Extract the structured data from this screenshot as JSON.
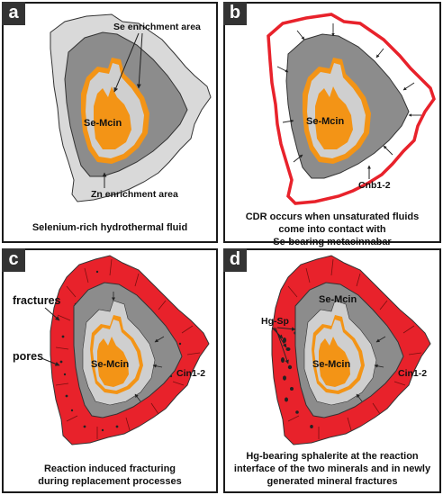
{
  "panels": {
    "a": {
      "tag": "a",
      "labels": {
        "se_area": "Se enrichment area",
        "core": "Se-Mcin",
        "zn_area": "Zn enrichment area"
      },
      "caption": [
        "Selenium-rich hydrothermal fluid"
      ]
    },
    "b": {
      "tag": "b",
      "labels": {
        "core": "Se-Mcin",
        "rim": "Cnb1-2"
      },
      "caption": [
        "CDR occurs when unsaturated fluids",
        "come into contact with",
        "Se-bearing metacinnabar"
      ]
    },
    "c": {
      "tag": "c",
      "labels": {
        "fractures": "fractures",
        "pores": "pores",
        "core": "Se-Mcin",
        "rim": "Cin1-2"
      },
      "caption": [
        "Reaction induced fracturing",
        "during replacement processes"
      ]
    },
    "d": {
      "tag": "d",
      "labels": {
        "se_mcin_outer": "Se-Mcin",
        "hg_sp": "Hg-Sp",
        "core": "Se-Mcin",
        "rim": "Cin1-2"
      },
      "caption": [
        "Hg-bearing sphalerite at the reaction",
        "interface of the two minerals and in newly",
        "generated mineral fractures"
      ]
    }
  },
  "colors": {
    "outer_light": "#d9d9d9",
    "mid_gray": "#8c8c8c",
    "inner_light": "#cfcfcf",
    "core_orange": "#f39416",
    "orange_rim": "#f39416",
    "red_rim": "#e8222b",
    "outline": "#333333"
  }
}
